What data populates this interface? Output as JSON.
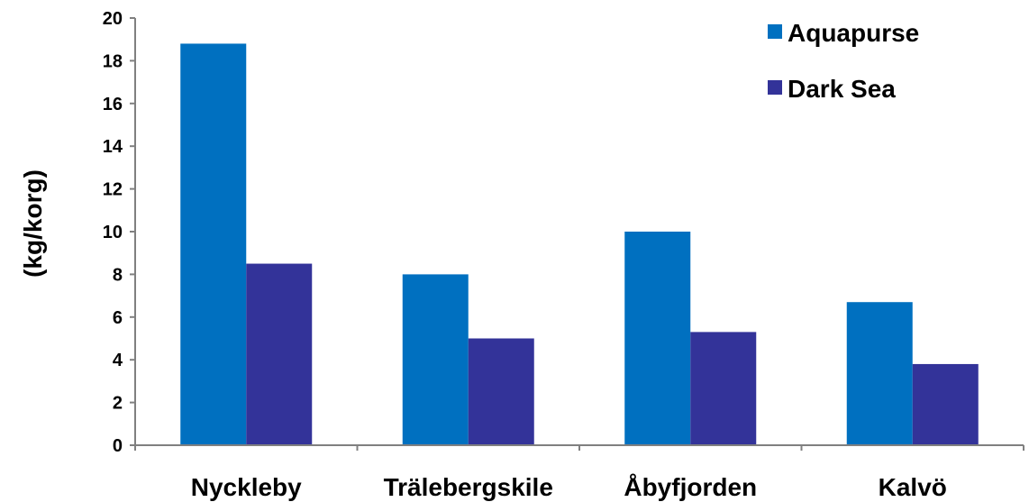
{
  "chart_data": {
    "type": "bar",
    "title": "",
    "xlabel": "",
    "ylabel": "(kg/korg)",
    "categories": [
      "Nyckleby",
      "Trälebergskile",
      "Åbyfjorden",
      "Kalvö"
    ],
    "series": [
      {
        "name": "Aquapurse",
        "color": "#0070C0",
        "values": [
          18.8,
          8.0,
          10.0,
          6.7
        ]
      },
      {
        "name": "Dark Sea",
        "color": "#333399",
        "values": [
          8.5,
          5.0,
          5.3,
          3.8
        ]
      }
    ],
    "ylim": [
      0,
      20
    ],
    "yticks": [
      0,
      2,
      4,
      6,
      8,
      10,
      12,
      14,
      16,
      18,
      20
    ],
    "grid": false,
    "legend_position": "top-right"
  }
}
